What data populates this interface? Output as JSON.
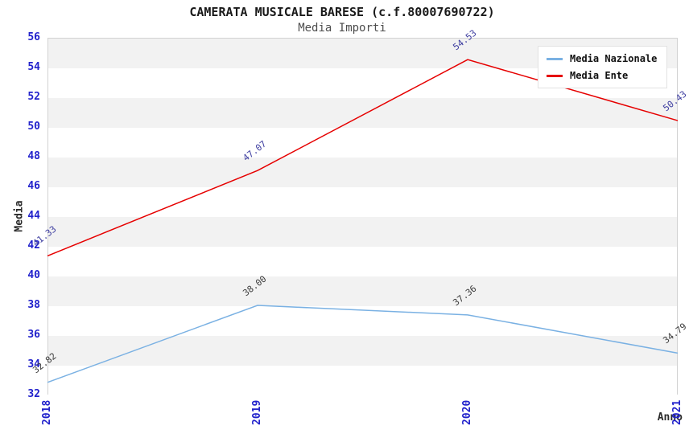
{
  "title": "CAMERATA MUSICALE BARESE (c.f.80007690722)",
  "subtitle": "Media Importi",
  "axes": {
    "ylabel": "Media",
    "xlabel": "Anno"
  },
  "legend": {
    "position": "top-right",
    "items": [
      {
        "label": "Media Nazionale",
        "color": "#7ab1e3"
      },
      {
        "label": "Media Ente",
        "color": "#e60000"
      }
    ]
  },
  "colors": {
    "tick_label": "#2222cc",
    "band_gray": "#f2f2f2",
    "band_white": "#ffffff",
    "plot_border": "#d2d2d2",
    "title_text": "#1a1a1a",
    "subtitle_text": "#4d4d4d"
  },
  "chart_data": {
    "type": "line",
    "categories": [
      "2018",
      "2019",
      "2020",
      "2021"
    ],
    "series": [
      {
        "name": "Media Nazionale",
        "color": "#7ab1e3",
        "label_color": "#3c3c3c",
        "values": [
          32.82,
          38.0,
          37.36,
          34.79
        ]
      },
      {
        "name": "Media Ente",
        "color": "#e60000",
        "label_color": "#3d3da0",
        "values": [
          41.33,
          47.07,
          54.53,
          50.43
        ]
      }
    ],
    "title": "CAMERATA MUSICALE BARESE (c.f.80007690722)",
    "subtitle": "Media Importi",
    "xlabel": "Anno",
    "ylabel": "Media",
    "ylim": [
      32,
      56
    ],
    "ytick_step": 2,
    "grid": "horizontal-bands",
    "legend_position": "top-right",
    "value_labels_rotation_deg": -38
  }
}
